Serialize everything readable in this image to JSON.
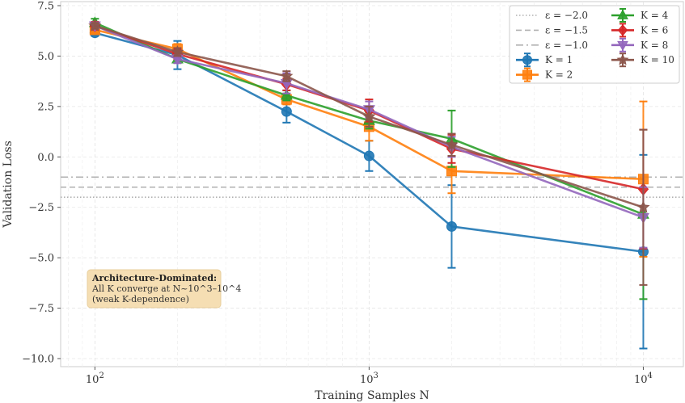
{
  "chart_data": {
    "type": "line",
    "title": "",
    "xlabel": "Training Samples N",
    "ylabel": "Validation Loss",
    "xscale": "log",
    "xlim": [
      75,
      14000
    ],
    "ylim": [
      -10.4,
      7.7
    ],
    "xticks": [
      100,
      1000,
      10000
    ],
    "xtick_labels": [
      "10^2",
      "10^3",
      "10^4"
    ],
    "yticks": [
      7.5,
      5.0,
      2.5,
      0.0,
      -2.5,
      -5.0,
      -7.5,
      -10.0
    ],
    "ytick_labels": [
      "7.5",
      "5.0",
      "2.5",
      "0.0",
      "−2.5",
      "−5.0",
      "−7.5",
      "−10.0"
    ],
    "grid": true,
    "legend_position": "top-right",
    "hlines": [
      {
        "label": "ε = −2.0",
        "y": -2.0,
        "style": "dotted",
        "color": "#b0b0b0"
      },
      {
        "label": "ε = −1.5",
        "y": -1.5,
        "style": "dashed",
        "color": "#b0b0b0"
      },
      {
        "label": "ε = −1.0",
        "y": -1.0,
        "style": "dashdot",
        "color": "#b0b0b0"
      }
    ],
    "x": [
      100,
      200,
      500,
      1000,
      2000,
      10000
    ],
    "series": [
      {
        "name": "K = 1",
        "color": "#1f77b4",
        "marker": "circle",
        "values": [
          6.15,
          5.05,
          2.25,
          0.05,
          -3.45,
          -4.7
        ],
        "errors": [
          0.15,
          0.7,
          0.55,
          0.75,
          2.05,
          4.8
        ]
      },
      {
        "name": "K = 2",
        "color": "#ff7f0e",
        "marker": "square",
        "values": [
          6.3,
          5.35,
          2.85,
          1.5,
          -0.7,
          -1.1
        ],
        "errors": [
          0.15,
          0.25,
          0.25,
          0.7,
          1.1,
          3.85
        ]
      },
      {
        "name": "K = 4",
        "color": "#2ca02c",
        "marker": "triangle-up",
        "values": [
          6.65,
          4.85,
          3.05,
          1.8,
          0.9,
          -2.85
        ],
        "errors": [
          0.2,
          0.2,
          0.25,
          0.4,
          1.4,
          4.2
        ]
      },
      {
        "name": "K = 6",
        "color": "#d62728",
        "marker": "diamond",
        "values": [
          6.5,
          5.1,
          3.6,
          2.3,
          0.4,
          -1.6
        ],
        "errors": [
          0.2,
          0.25,
          0.3,
          0.55,
          0.7,
          2.95
        ]
      },
      {
        "name": "K = 8",
        "color": "#9467bd",
        "marker": "triangle-down",
        "values": [
          6.5,
          4.85,
          3.65,
          2.35,
          0.5,
          -3.0
        ],
        "errors": [
          0.15,
          0.2,
          0.5,
          0.4,
          0.5,
          1.5
        ]
      },
      {
        "name": "K = 10",
        "color": "#8c564b",
        "marker": "star",
        "values": [
          6.5,
          5.2,
          4.0,
          2.0,
          0.6,
          -2.5
        ],
        "errors": [
          0.15,
          0.2,
          0.25,
          0.5,
          0.55,
          3.85
        ]
      }
    ],
    "annotation": {
      "title": "Architecture-Dominated:",
      "line1": "All K converge at N~10^3–10^4",
      "line2": "(weak K-dependence)",
      "position": "bottom-left",
      "background": "#f5deb3"
    }
  }
}
